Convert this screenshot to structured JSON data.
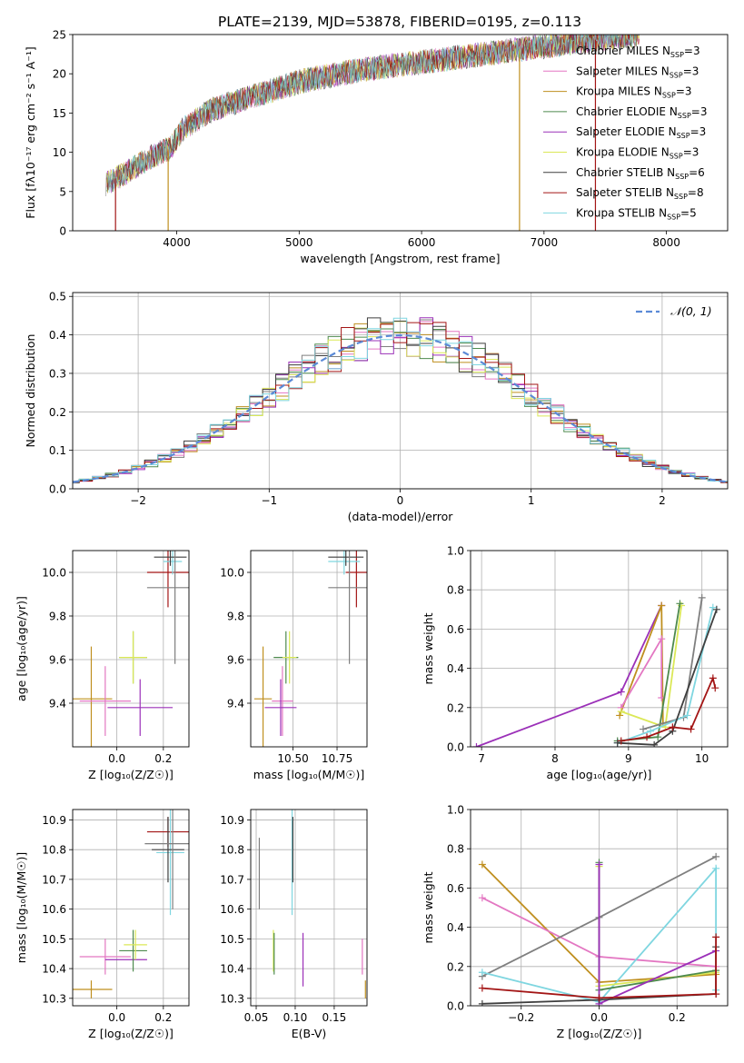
{
  "figure": {
    "title": "PLATE=2139, MJD=53878, FIBERID=0195, z=0.113"
  },
  "series_styles": [
    {
      "name": "Chabrier MILES",
      "nssp": "3",
      "color": "#7f7f7f"
    },
    {
      "name": "Salpeter MILES",
      "nssp": "3",
      "color": "#e377c2"
    },
    {
      "name": "Kroupa MILES",
      "nssp": "3",
      "color": "#bf8f1f"
    },
    {
      "name": "Chabrier ELODIE",
      "nssp": "3",
      "color": "#4e8a4e"
    },
    {
      "name": "Salpeter ELODIE",
      "nssp": "3",
      "color": "#9b30b8"
    },
    {
      "name": "Kroupa ELODIE",
      "nssp": "3",
      "color": "#dbe857"
    },
    {
      "name": "Chabrier STELIB",
      "nssp": "6",
      "color": "#3f3f3f"
    },
    {
      "name": "Salpeter STELIB",
      "nssp": "8",
      "color": "#a31515"
    },
    {
      "name": "Kroupa STELIB",
      "nssp": "5",
      "color": "#7fd6e0"
    }
  ],
  "chart_data": [
    {
      "id": "spectrum",
      "type": "line",
      "xlabel": "wavelength [Angstrom, rest frame]",
      "ylabel": "Flux [fλ10⁻¹⁷ erg cm⁻² s⁻¹ A⁻¹]",
      "xlim": [
        3150,
        8500
      ],
      "ylim": [
        0,
        25
      ],
      "xticks": [
        4000,
        5000,
        6000,
        7000,
        8000
      ],
      "yticks": [
        0,
        5,
        10,
        15,
        20,
        25
      ],
      "legend_location": "right",
      "spectrum_x_range": [
        3420,
        7780
      ],
      "continuum": [
        [
          3420,
          6.0
        ],
        [
          3600,
          7.5
        ],
        [
          3800,
          9.5
        ],
        [
          3950,
          10.5
        ],
        [
          4050,
          13.0
        ],
        [
          4300,
          15.5
        ],
        [
          4600,
          17.0
        ],
        [
          5000,
          19.0
        ],
        [
          5500,
          20.5
        ],
        [
          6000,
          21.5
        ],
        [
          6500,
          22.5
        ],
        [
          7000,
          23.5
        ],
        [
          7500,
          24.5
        ],
        [
          7780,
          25.0
        ]
      ],
      "spikes": [
        {
          "x": 3500,
          "series": "Salpeter STELIB",
          "to": 0
        },
        {
          "x": 3930,
          "series": "Kroupa MILES",
          "to": 0
        },
        {
          "x": 6800,
          "series": "Kroupa MILES",
          "to": 0
        },
        {
          "x": 7420,
          "series": "Salpeter STELIB",
          "to": 0
        }
      ]
    },
    {
      "id": "residuals",
      "type": "line",
      "xlabel": "(data-model)/error",
      "ylabel": "Normed distribution",
      "xlim": [
        -2.5,
        2.5
      ],
      "ylim": [
        0,
        0.51
      ],
      "xticks": [
        -2,
        -1,
        0,
        1,
        2
      ],
      "yticks": [
        0.0,
        0.1,
        0.2,
        0.3,
        0.4,
        0.5
      ],
      "grid": true,
      "legend": "𝒩(0, 1)",
      "legend_location": "top-right",
      "reference_curve": "standard normal, dashed",
      "histogram_bin_width": 0.1
    },
    {
      "id": "age_vs_Z",
      "type": "scatter",
      "xlabel": "Z [log₁₀(Z/Z☉)]",
      "ylabel": "age  [log₁₀(age/yr)]",
      "xlim": [
        -0.19,
        0.31
      ],
      "ylim": [
        9.2,
        10.1
      ],
      "xticks": [
        0.0,
        0.2
      ],
      "xtick_labels": [
        "0.0",
        "0.2"
      ],
      "yticks": [
        9.4,
        9.6,
        9.8,
        10.0
      ],
      "grid": true,
      "points": [
        {
          "series": "Kroupa MILES",
          "x": -0.11,
          "y": 9.42,
          "xerr": 0.09,
          "yerr": 0.24
        },
        {
          "series": "Salpeter MILES",
          "x": -0.05,
          "y": 9.41,
          "xerr": 0.11,
          "yerr": 0.16
        },
        {
          "series": "Salpeter ELODIE",
          "x": 0.1,
          "y": 9.38,
          "xerr": 0.14,
          "yerr": 0.13
        },
        {
          "series": "Chabrier ELODIE",
          "x": 0.07,
          "y": 9.61,
          "xerr": 0.06,
          "yerr": 0.12
        },
        {
          "series": "Kroupa ELODIE",
          "x": 0.07,
          "y": 9.61,
          "xerr": 0.06,
          "yerr": 0.12
        },
        {
          "series": "Salpeter STELIB",
          "x": 0.22,
          "y": 10.0,
          "xerr": 0.09,
          "yerr": 0.16
        },
        {
          "series": "Kroupa STELIB",
          "x": 0.24,
          "y": 10.05,
          "xerr": 0.04,
          "yerr": 0.06
        },
        {
          "series": "Chabrier STELIB",
          "x": 0.23,
          "y": 10.07,
          "xerr": 0.07,
          "yerr": 0.04
        },
        {
          "series": "Chabrier MILES",
          "x": 0.25,
          "y": 9.93,
          "xerr": 0.12,
          "yerr": 0.35
        }
      ]
    },
    {
      "id": "age_vs_mass",
      "type": "scatter",
      "xlabel": "mass [log₁₀(M/M☉)]",
      "ylabel": "",
      "xlim": [
        10.26,
        10.92
      ],
      "ylim": [
        9.2,
        10.1
      ],
      "xticks": [
        10.5,
        10.75
      ],
      "xtick_labels": [
        "10.50",
        "10.75"
      ],
      "yticks": [
        9.4,
        9.6,
        9.8,
        10.0
      ],
      "grid": true,
      "points": [
        {
          "series": "Kroupa MILES",
          "x": 10.33,
          "y": 9.42,
          "xerr": 0.05,
          "yerr": 0.24
        },
        {
          "series": "Salpeter MILES",
          "x": 10.44,
          "y": 9.41,
          "xerr": 0.06,
          "yerr": 0.16
        },
        {
          "series": "Salpeter ELODIE",
          "x": 10.43,
          "y": 9.38,
          "xerr": 0.09,
          "yerr": 0.13
        },
        {
          "series": "Chabrier ELODIE",
          "x": 10.46,
          "y": 9.61,
          "xerr": 0.07,
          "yerr": 0.12
        },
        {
          "series": "Kroupa ELODIE",
          "x": 10.48,
          "y": 9.61,
          "xerr": 0.04,
          "yerr": 0.12
        },
        {
          "series": "Salpeter STELIB",
          "x": 10.86,
          "y": 10.0,
          "xerr": 0.06,
          "yerr": 0.16
        },
        {
          "series": "Kroupa STELIB",
          "x": 10.79,
          "y": 10.05,
          "xerr": 0.09,
          "yerr": 0.06
        },
        {
          "series": "Chabrier STELIB",
          "x": 10.8,
          "y": 10.07,
          "xerr": 0.1,
          "yerr": 0.04
        },
        {
          "series": "Chabrier MILES",
          "x": 10.82,
          "y": 9.93,
          "xerr": 0.12,
          "yerr": 0.35
        }
      ]
    },
    {
      "id": "massweight_vs_age",
      "type": "line",
      "xlabel": "age  [log₁₀(age/yr)]",
      "ylabel": "mass weight",
      "xlim": [
        6.85,
        10.35
      ],
      "ylim": [
        0,
        1.0
      ],
      "xticks": [
        7,
        8,
        9,
        10
      ],
      "yticks": [
        0.0,
        0.2,
        0.4,
        0.6,
        0.8,
        1.0
      ],
      "grid": true,
      "series": [
        {
          "name": "Salpeter ELODIE",
          "x": [
            6.93,
            8.9,
            9.45
          ],
          "y": [
            0.0,
            0.28,
            0.72
          ]
        },
        {
          "name": "Kroupa MILES",
          "x": [
            8.88,
            9.45,
            9.47
          ],
          "y": [
            0.16,
            0.72,
            0.12
          ]
        },
        {
          "name": "Salpeter MILES",
          "x": [
            8.9,
            9.45,
            9.45
          ],
          "y": [
            0.2,
            0.55,
            0.25
          ]
        },
        {
          "name": "Kroupa ELODIE",
          "x": [
            8.9,
            9.5,
            9.72
          ],
          "y": [
            0.18,
            0.1,
            0.72
          ]
        },
        {
          "name": "Chabrier ELODIE",
          "x": [
            8.85,
            9.4,
            9.7
          ],
          "y": [
            0.03,
            0.05,
            0.73
          ]
        },
        {
          "name": "Chabrier MILES",
          "x": [
            9.2,
            9.75,
            10.0
          ],
          "y": [
            0.09,
            0.15,
            0.76
          ]
        },
        {
          "name": "Kroupa STELIB",
          "x": [
            8.85,
            9.3,
            9.8,
            10.15
          ],
          "y": [
            0.02,
            0.08,
            0.16,
            0.71
          ]
        },
        {
          "name": "Chabrier STELIB",
          "x": [
            8.85,
            9.35,
            9.6,
            10.2
          ],
          "y": [
            0.02,
            0.01,
            0.08,
            0.7
          ]
        },
        {
          "name": "Salpeter STELIB",
          "x": [
            8.9,
            9.25,
            9.6,
            9.85,
            10.15,
            10.18
          ],
          "y": [
            0.03,
            0.05,
            0.1,
            0.09,
            0.35,
            0.3
          ]
        }
      ]
    },
    {
      "id": "mass_vs_Z",
      "type": "scatter",
      "xlabel": "Z [log₁₀(Z/Z☉)]",
      "ylabel": "mass [log₁₀(M/M☉)]",
      "xlim": [
        -0.19,
        0.31
      ],
      "ylim": [
        10.275,
        10.935
      ],
      "xticks": [
        0.0,
        0.2
      ],
      "xtick_labels": [
        "0.0",
        "0.2"
      ],
      "yticks": [
        10.3,
        10.4,
        10.5,
        10.6,
        10.7,
        10.8,
        10.9
      ],
      "grid": true,
      "points": [
        {
          "series": "Kroupa MILES",
          "x": -0.11,
          "y": 10.33,
          "xerr": 0.09,
          "yerr": 0.03
        },
        {
          "series": "Salpeter MILES",
          "x": -0.05,
          "y": 10.44,
          "xerr": 0.11,
          "yerr": 0.06
        },
        {
          "series": "Salpeter ELODIE",
          "x": 0.04,
          "y": 10.43,
          "xerr": 0.09,
          "yerr": 0.0
        },
        {
          "series": "Chabrier ELODIE",
          "x": 0.07,
          "y": 10.46,
          "xerr": 0.06,
          "yerr": 0.07
        },
        {
          "series": "Kroupa ELODIE",
          "x": 0.08,
          "y": 10.48,
          "xerr": 0.05,
          "yerr": 0.05
        },
        {
          "series": "Salpeter STELIB",
          "x": 0.22,
          "y": 10.86,
          "xerr": 0.09,
          "yerr": 0.05
        },
        {
          "series": "Kroupa STELIB",
          "x": 0.23,
          "y": 10.79,
          "xerr": 0.06,
          "yerr": 0.21
        },
        {
          "series": "Chabrier STELIB",
          "x": 0.22,
          "y": 10.8,
          "xerr": 0.07,
          "yerr": 0.11
        },
        {
          "series": "Chabrier MILES",
          "x": 0.24,
          "y": 10.82,
          "xerr": 0.12,
          "yerr": 0.22
        }
      ]
    },
    {
      "id": "mass_vs_ebv",
      "type": "scatter",
      "xlabel": "E(B-V)",
      "ylabel": "",
      "xlim": [
        0.043,
        0.192
      ],
      "ylim": [
        10.275,
        10.935
      ],
      "xticks": [
        0.05,
        0.1,
        0.15
      ],
      "xtick_labels": [
        "0.05",
        "0.10",
        "0.15"
      ],
      "yticks": [
        10.3,
        10.4,
        10.5,
        10.6,
        10.7,
        10.8,
        10.9
      ],
      "grid": true,
      "points": [
        {
          "series": "Kroupa MILES",
          "x": 0.19,
          "y": 10.33,
          "xerr": 0.0,
          "yerr": 0.03
        },
        {
          "series": "Salpeter MILES",
          "x": 0.186,
          "y": 10.44,
          "xerr": 0.0,
          "yerr": 0.06
        },
        {
          "series": "Salpeter ELODIE",
          "x": 0.11,
          "y": 10.43,
          "xerr": 0.0,
          "yerr": 0.09
        },
        {
          "series": "Kroupa ELODIE",
          "x": 0.072,
          "y": 10.46,
          "xerr": 0.0,
          "yerr": 0.07
        },
        {
          "series": "Chabrier ELODIE",
          "x": 0.073,
          "y": 10.45,
          "xerr": 0.0,
          "yerr": 0.07
        },
        {
          "series": "Salpeter STELIB",
          "x": 0.097,
          "y": 10.86,
          "xerr": 0.0,
          "yerr": 0.05
        },
        {
          "series": "Kroupa STELIB",
          "x": 0.096,
          "y": 10.79,
          "xerr": 0.0,
          "yerr": 0.21
        },
        {
          "series": "Chabrier STELIB",
          "x": 0.097,
          "y": 10.8,
          "xerr": 0.0,
          "yerr": 0.11
        },
        {
          "series": "Chabrier MILES",
          "x": 0.054,
          "y": 10.72,
          "xerr": 0.0,
          "yerr": 0.12
        }
      ]
    },
    {
      "id": "massweight_vs_Z",
      "type": "line",
      "xlabel": "Z [log₁₀(Z/Z☉)]",
      "ylabel": "mass weight",
      "xlim": [
        -0.33,
        0.33
      ],
      "ylim": [
        0,
        1.0
      ],
      "xticks": [
        -0.2,
        0.0,
        0.2
      ],
      "xtick_labels": [
        "−0.2",
        "0.0",
        "0.2"
      ],
      "yticks": [
        0.0,
        0.2,
        0.4,
        0.6,
        0.8,
        1.0
      ],
      "grid": true,
      "series": [
        {
          "name": "Kroupa MILES",
          "x": [
            -0.3,
            0.0,
            0.3
          ],
          "y": [
            0.72,
            0.12,
            0.16
          ]
        },
        {
          "name": "Salpeter MILES",
          "x": [
            -0.3,
            0.0,
            0.3
          ],
          "y": [
            0.55,
            0.25,
            0.2
          ]
        },
        {
          "name": "Chabrier MILES",
          "x": [
            -0.3,
            0.0,
            0.3
          ],
          "y": [
            0.15,
            0.45,
            0.76
          ]
        },
        {
          "name": "Kroupa STELIB",
          "x": [
            -0.3,
            0.0,
            0.3,
            0.3
          ],
          "y": [
            0.17,
            0.02,
            0.7,
            0.08
          ]
        },
        {
          "name": "Kroupa ELODIE",
          "x": [
            0.0,
            0.0,
            0.3
          ],
          "y": [
            0.71,
            0.1,
            0.17
          ]
        },
        {
          "name": "Chabrier ELODIE",
          "x": [
            0.0,
            0.0,
            0.3
          ],
          "y": [
            0.73,
            0.08,
            0.18
          ]
        },
        {
          "name": "Salpeter ELODIE",
          "x": [
            0.0,
            0.0,
            0.3
          ],
          "y": [
            0.72,
            0.01,
            0.28
          ]
        },
        {
          "name": "Chabrier STELIB",
          "x": [
            -0.3,
            0.0,
            0.3,
            0.3
          ],
          "y": [
            0.01,
            0.03,
            0.06,
            0.3
          ]
        },
        {
          "name": "Salpeter STELIB",
          "x": [
            -0.3,
            0.0,
            0.3,
            0.3
          ],
          "y": [
            0.09,
            0.04,
            0.06,
            0.35
          ]
        }
      ]
    }
  ]
}
